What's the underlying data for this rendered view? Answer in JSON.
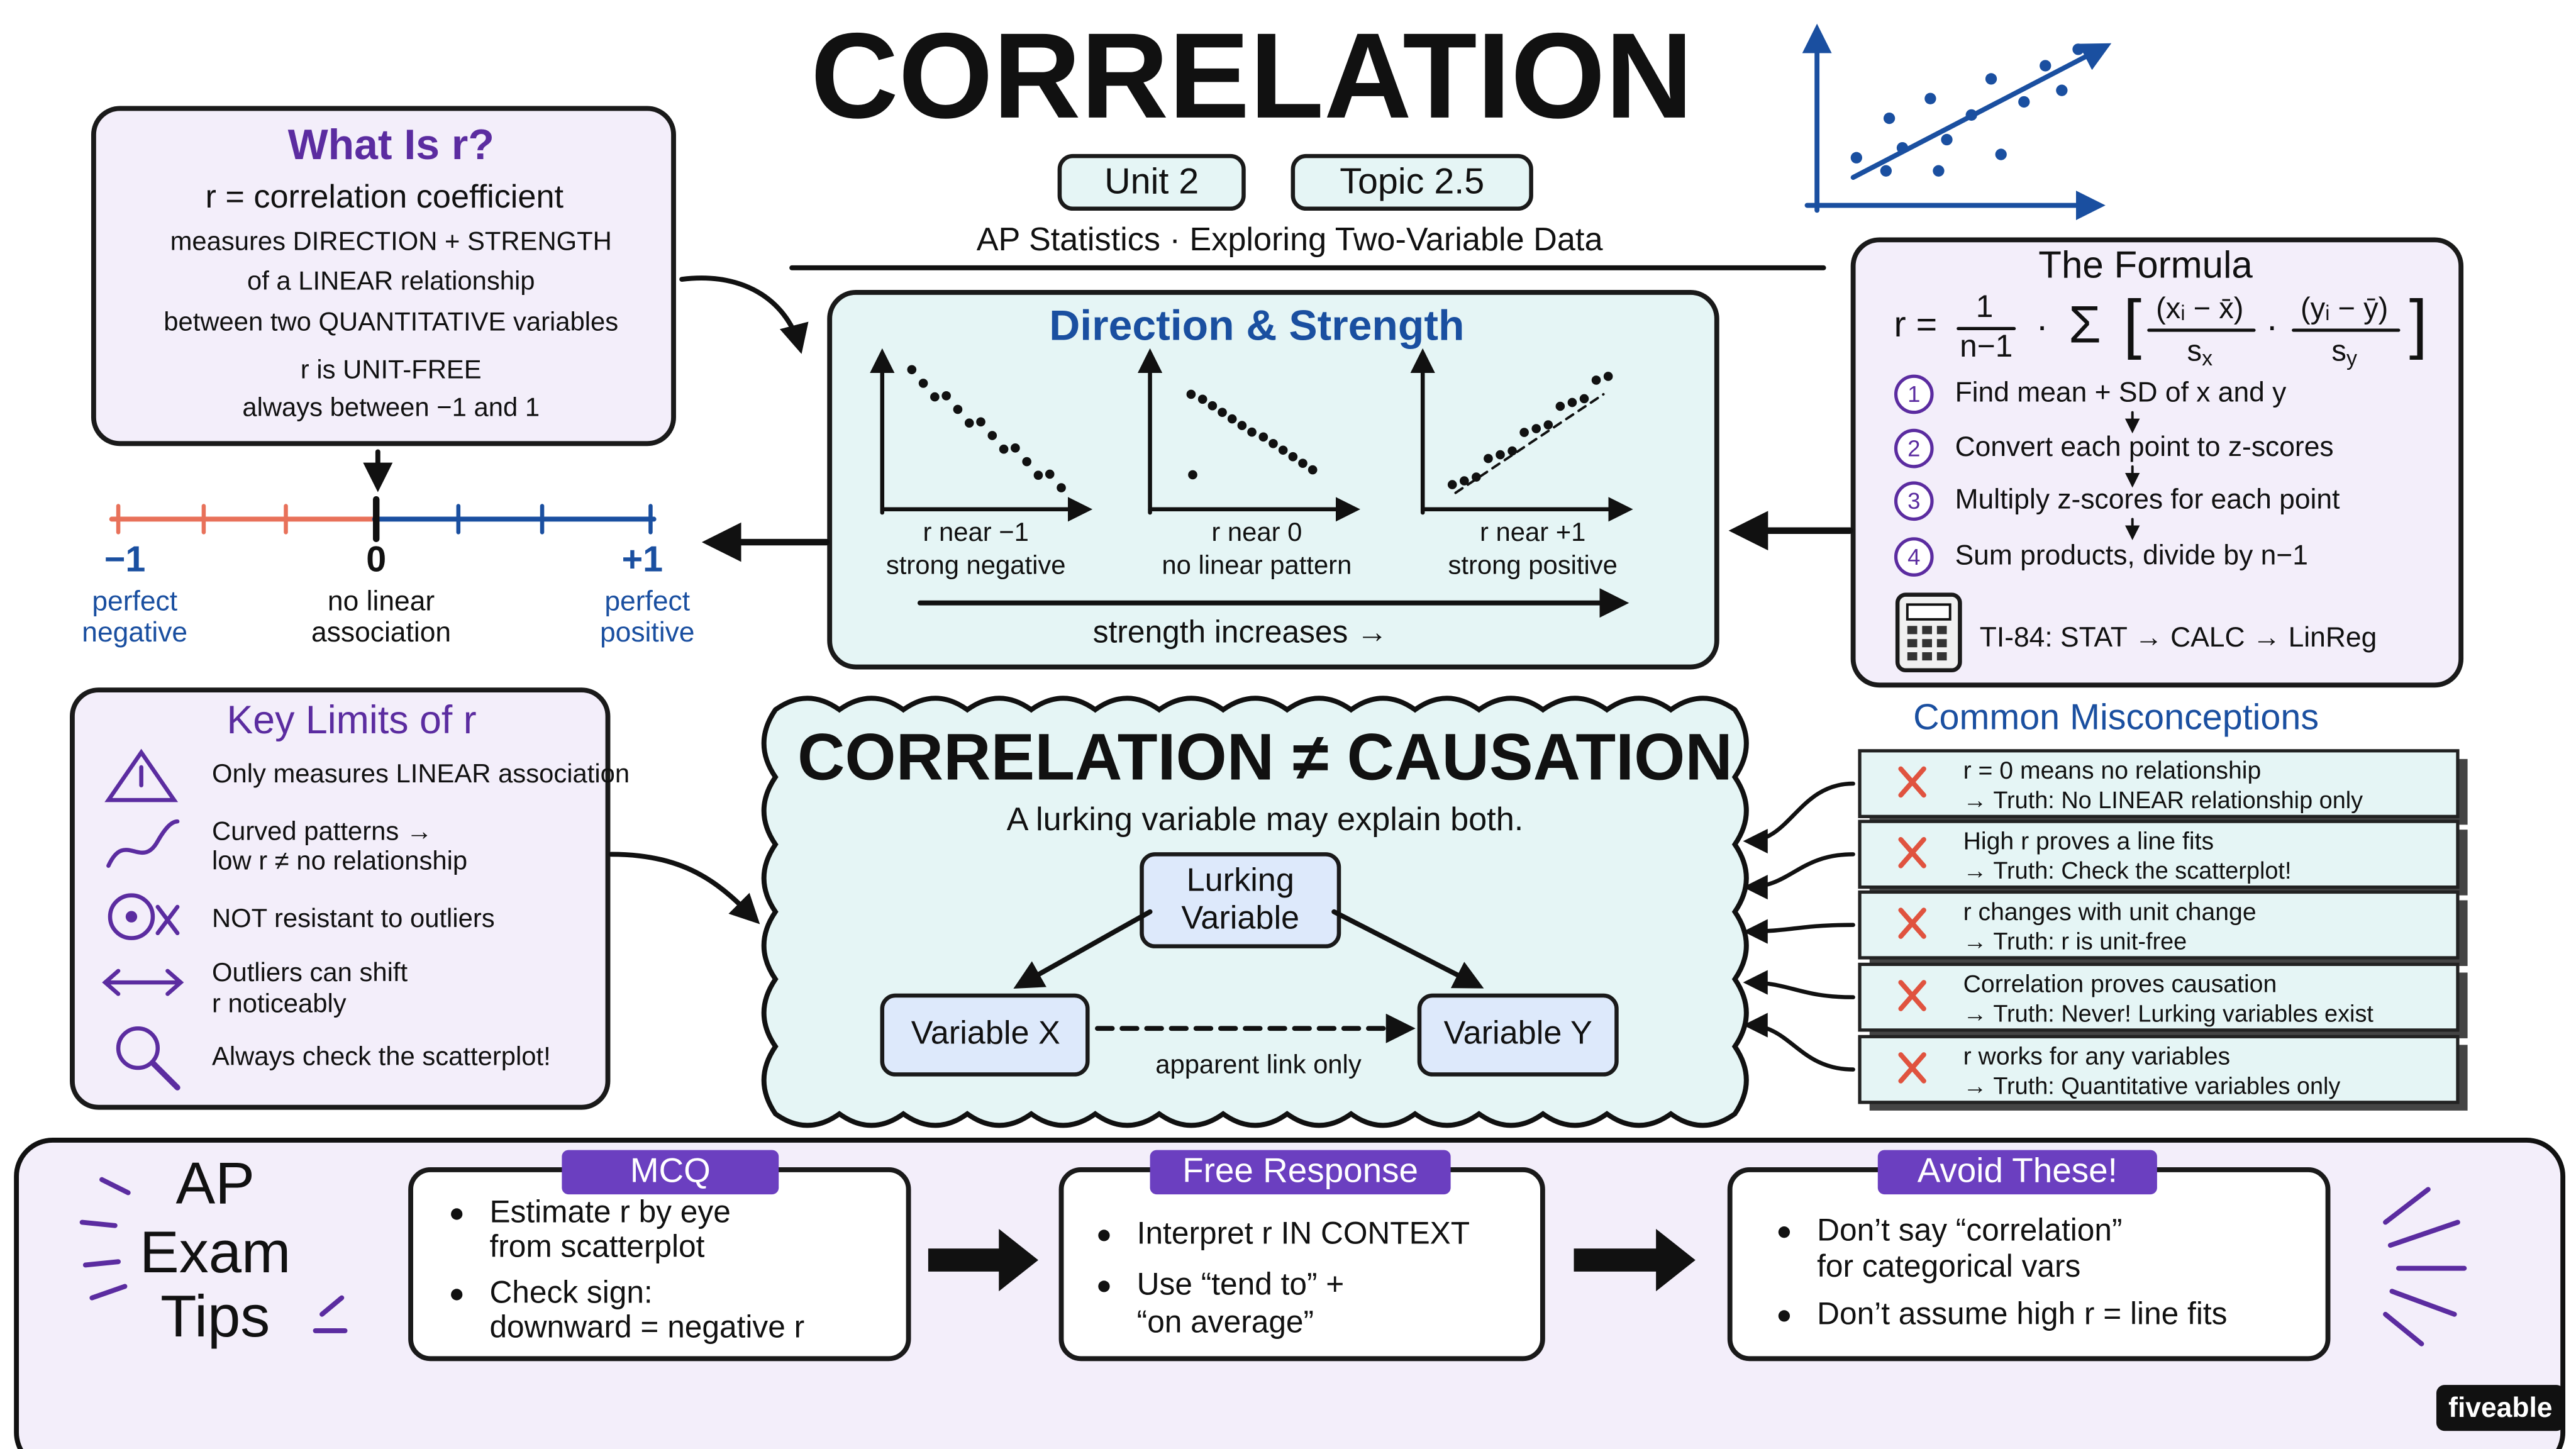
{
  "header": {
    "title": "CORRELATION",
    "badges": [
      "Unit 2",
      "Topic 2.5"
    ],
    "subtitle": "AP Statistics · Exploring Two-Variable Data"
  },
  "what_is_r": {
    "title": "What Is r?",
    "definition": "r = correlation coefficient",
    "lines": [
      "measures DIRECTION + STRENGTH",
      "of a LINEAR relationship",
      "between two QUANTITATIVE variables",
      "r is UNIT-FREE",
      "always between −1 and 1"
    ]
  },
  "number_line": {
    "points": [
      {
        "label": "−1",
        "caption": [
          "perfect",
          "negative"
        ]
      },
      {
        "label": "0",
        "caption": [
          "no linear",
          "association"
        ]
      },
      {
        "label": "+1",
        "caption": [
          "perfect",
          "positive"
        ]
      }
    ]
  },
  "direction_strength": {
    "title": "Direction & Strength",
    "plots": [
      {
        "label": "r near −1",
        "caption": "strong negative"
      },
      {
        "label": "r near 0",
        "caption": "no linear pattern"
      },
      {
        "label": "r near +1",
        "caption": "strong positive"
      }
    ],
    "footer": "strength increases →"
  },
  "formula": {
    "title": "The Formula",
    "equation": {
      "lhs": "r =",
      "numerator": "1",
      "denominator": "n−1",
      "dot": "·",
      "sigma": "Σ",
      "open": "[",
      "x_term": "(xᵢ − x̄)",
      "x_sd": {
        "base": "s",
        "sub": "x"
      },
      "times": "·",
      "y_term": "(yᵢ − ȳ)",
      "y_sd": {
        "base": "s",
        "sub": "y"
      },
      "close": "]"
    },
    "steps": [
      {
        "number": "1",
        "text": "Find mean + SD of x and y"
      },
      {
        "number": "2",
        "text": "Convert each point to z-scores"
      },
      {
        "number": "3",
        "text": "Multiply z-scores for each point"
      },
      {
        "number": "4",
        "text": "Sum products, divide by n−1"
      }
    ],
    "calculator": "TI-84: STAT → CALC → LinReg"
  },
  "key_limits": {
    "title": "Key Limits of r",
    "items": [
      [
        "Only measures LINEAR association"
      ],
      [
        "Curved patterns →",
        "low r ≠ no relationship"
      ],
      [
        "NOT resistant to outliers"
      ],
      [
        "Outliers can shift",
        "r noticeably"
      ],
      [
        "Always check the scatterplot!"
      ]
    ]
  },
  "causation": {
    "title": "CORRELATION ≠ CAUSATION",
    "subtitle": "A lurking variable may explain both.",
    "lurking": [
      "Lurking",
      "Variable"
    ],
    "variable_x": "Variable X",
    "variable_y": "Variable Y",
    "link": "apparent link only"
  },
  "misconceptions": {
    "title": "Common Misconceptions",
    "items": [
      {
        "claim": "r = 0 means no relationship",
        "truth": "→ Truth: No LINEAR relationship only"
      },
      {
        "claim": "High r proves a line fits",
        "truth": "→ Truth: Check the scatterplot!"
      },
      {
        "claim": "r changes with unit change",
        "truth": "→ Truth: r is unit-free"
      },
      {
        "claim": "Correlation proves causation",
        "truth": "→ Truth: Never! Lurking variables exist"
      },
      {
        "claim": "r works for any variables",
        "truth": "→ Truth: Quantitative variables only"
      }
    ]
  },
  "exam_tips": {
    "title": [
      "AP",
      "Exam",
      "Tips"
    ],
    "cards": [
      {
        "title": "MCQ",
        "bullets": [
          [
            "Estimate r by eye",
            "from scatterplot"
          ],
          [
            "Check sign:",
            "downward = negative r"
          ]
        ]
      },
      {
        "title": "Free Response",
        "bullets": [
          [
            "Interpret r IN CONTEXT"
          ],
          [
            "Use “tend to” +",
            "“on average”"
          ]
        ]
      },
      {
        "title": "Avoid These!",
        "bullets": [
          [
            "Don’t say “correlation”",
            "for categorical vars"
          ],
          [
            "Don’t assume high r = line fits"
          ]
        ]
      }
    ]
  },
  "brand": "fiveable"
}
